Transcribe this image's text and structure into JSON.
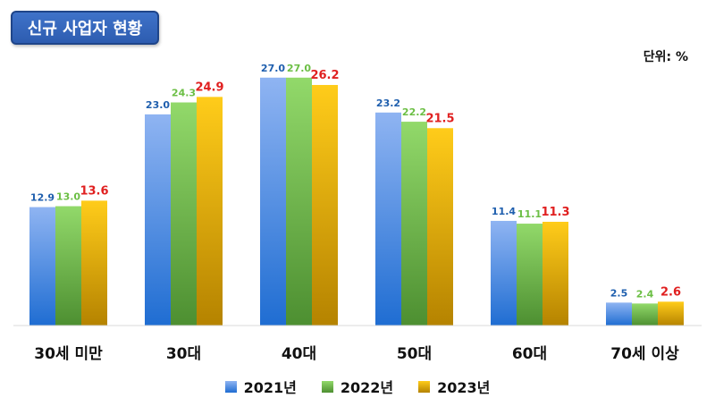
{
  "header": {
    "title": "신규 사업자 현황",
    "unit": "단위: %"
  },
  "colors": {
    "s2021_top": "#8fb4f2",
    "s2021_bottom": "#1f6dd2",
    "s2021_label": "#1f5fae",
    "s2022_top": "#92d96a",
    "s2022_bottom": "#4d8f31",
    "s2022_label": "#6cbf45",
    "s2023_top": "#ffcc1a",
    "s2023_bottom": "#b58300",
    "s2023_label": "#e02020"
  },
  "chart_data": {
    "type": "bar",
    "categories": [
      "30세 미만",
      "30대",
      "40대",
      "50대",
      "60대",
      "70세 이상"
    ],
    "series": [
      {
        "name": "2021년",
        "values": [
          12.9,
          23.0,
          27.0,
          23.2,
          11.4,
          2.5
        ]
      },
      {
        "name": "2022년",
        "values": [
          13.0,
          24.3,
          27.0,
          22.2,
          11.1,
          2.4
        ]
      },
      {
        "name": "2023년",
        "values": [
          13.6,
          24.9,
          26.2,
          21.5,
          11.3,
          2.6
        ]
      }
    ],
    "value_labels": [
      [
        "12.9",
        "23.0",
        "27.0",
        "23.2",
        "11.4",
        "2.5"
      ],
      [
        "13.0",
        "24.3",
        "27.0",
        "22.2",
        "11.1",
        "2.4"
      ],
      [
        "13.6",
        "24.9",
        "26.2",
        "21.5",
        "11.3",
        "2.6"
      ]
    ],
    "title": "신규 사업자 현황",
    "ylim": [
      0,
      30
    ],
    "grid": false,
    "legend": "bottom"
  }
}
